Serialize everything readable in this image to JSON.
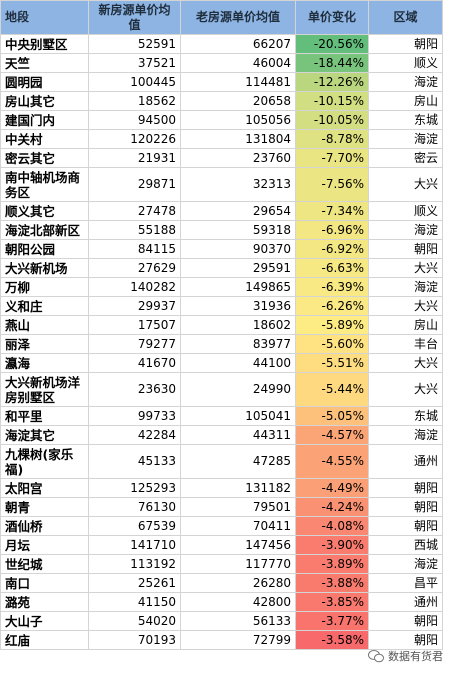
{
  "table": {
    "header": [
      "地段",
      "新房源单价均值",
      "老房源单价均值",
      "单价变化",
      "区域"
    ],
    "rows": [
      [
        "中央别墅区",
        52591,
        66207,
        {
          "value": -20.56,
          "label": "-20.56%"
        },
        "朝阳"
      ],
      [
        "天竺",
        37521,
        46004,
        {
          "value": -18.44,
          "label": "-18.44%"
        },
        "顺义"
      ],
      [
        "圆明园",
        100445,
        114481,
        {
          "value": -12.26,
          "label": "-12.26%"
        },
        "海淀"
      ],
      [
        "房山其它",
        18562,
        20658,
        {
          "value": -10.15,
          "label": "-10.15%"
        },
        "房山"
      ],
      [
        "建国门内",
        94500,
        105056,
        {
          "value": -10.05,
          "label": "-10.05%"
        },
        "东城"
      ],
      [
        "中关村",
        120226,
        131804,
        {
          "value": -8.78,
          "label": "-8.78%"
        },
        "海淀"
      ],
      [
        "密云其它",
        21931,
        23760,
        {
          "value": -7.7,
          "label": "-7.70%"
        },
        "密云"
      ],
      [
        "南中轴机场商务区",
        29871,
        32313,
        {
          "value": -7.56,
          "label": "-7.56%"
        },
        "大兴"
      ],
      [
        "顺义其它",
        27478,
        29654,
        {
          "value": -7.34,
          "label": "-7.34%"
        },
        "顺义"
      ],
      [
        "海淀北部新区",
        55188,
        59318,
        {
          "value": -6.96,
          "label": "-6.96%"
        },
        "海淀"
      ],
      [
        "朝阳公园",
        84115,
        90370,
        {
          "value": -6.92,
          "label": "-6.92%"
        },
        "朝阳"
      ],
      [
        "大兴新机场",
        27629,
        29591,
        {
          "value": -6.63,
          "label": "-6.63%"
        },
        "大兴"
      ],
      [
        "万柳",
        140282,
        149865,
        {
          "value": -6.39,
          "label": "-6.39%"
        },
        "海淀"
      ],
      [
        "义和庄",
        29937,
        31936,
        {
          "value": -6.26,
          "label": "-6.26%"
        },
        "大兴"
      ],
      [
        "燕山",
        17507,
        18602,
        {
          "value": -5.89,
          "label": "-5.89%"
        },
        "房山"
      ],
      [
        "丽泽",
        79277,
        83977,
        {
          "value": -5.6,
          "label": "-5.60%"
        },
        "丰台"
      ],
      [
        "瀛海",
        41670,
        44100,
        {
          "value": -5.51,
          "label": "-5.51%"
        },
        "大兴"
      ],
      [
        "大兴新机场洋房别墅区",
        23630,
        24990,
        {
          "value": -5.44,
          "label": "-5.44%"
        },
        "大兴"
      ],
      [
        "和平里",
        99733,
        105041,
        {
          "value": -5.05,
          "label": "-5.05%"
        },
        "东城"
      ],
      [
        "海淀其它",
        42284,
        44311,
        {
          "value": -4.57,
          "label": "-4.57%"
        },
        "海淀"
      ],
      [
        "九棵树(家乐福)",
        45133,
        47285,
        {
          "value": -4.55,
          "label": "-4.55%"
        },
        "通州"
      ],
      [
        "太阳宫",
        125293,
        131182,
        {
          "value": -4.49,
          "label": "-4.49%"
        },
        "朝阳"
      ],
      [
        "朝青",
        76130,
        79501,
        {
          "value": -4.24,
          "label": "-4.24%"
        },
        "朝阳"
      ],
      [
        "酒仙桥",
        67539,
        70411,
        {
          "value": -4.08,
          "label": "-4.08%"
        },
        "朝阳"
      ],
      [
        "月坛",
        141710,
        147456,
        {
          "value": -3.9,
          "label": "-3.90%"
        },
        "西城"
      ],
      [
        "世纪城",
        113192,
        117770,
        {
          "value": -3.89,
          "label": "-3.89%"
        },
        "海淀"
      ],
      [
        "南口",
        25261,
        26280,
        {
          "value": -3.88,
          "label": "-3.88%"
        },
        "昌平"
      ],
      [
        "潞苑",
        41150,
        42800,
        {
          "value": -3.85,
          "label": "-3.85%"
        },
        "通州"
      ],
      [
        "大山子",
        54020,
        56133,
        {
          "value": -3.77,
          "label": "-3.77%"
        },
        "朝阳"
      ],
      [
        "红庙",
        70193,
        72799,
        {
          "value": -3.58,
          "label": "-3.58%"
        },
        "朝阳"
      ]
    ]
  },
  "footer": {
    "watermark": "数据有货君"
  }
}
